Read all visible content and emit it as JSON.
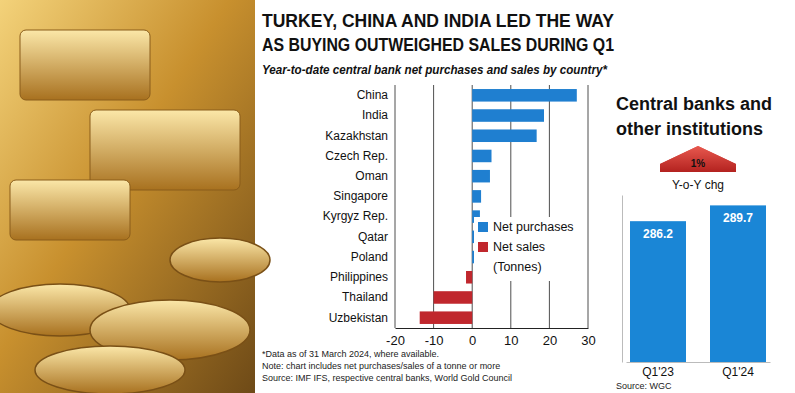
{
  "chart_data": [
    {
      "type": "bar",
      "orientation": "horizontal",
      "title": [
        "TURKEY, CHINA AND INDIA LED THE WAY",
        "AS BUYING OUTWEIGHED SALES DURING Q1"
      ],
      "subtitle": "Year-to-date central bank net purchases and sales by country*",
      "categories": [
        "China",
        "India",
        "Kazakhstan",
        "Czech Rep.",
        "Oman",
        "Singapore",
        "Kyrgyz Rep.",
        "Qatar",
        "Poland",
        "Philippines",
        "Thailand",
        "Uzbekistan"
      ],
      "series": [
        {
          "name": "Net purchases",
          "color": "#1f7fd0",
          "values": [
            27.1,
            18.6,
            16.7,
            5,
            4.6,
            2.3,
            2,
            1.9,
            1.3,
            null,
            null,
            null
          ]
        },
        {
          "name": "Net sales",
          "color": "#c0272d",
          "values": [
            null,
            null,
            null,
            null,
            null,
            null,
            null,
            null,
            null,
            -1.6,
            -10,
            -13.6
          ]
        }
      ],
      "xlim": [
        -20,
        30
      ],
      "xticks": [
        -20,
        -10,
        0,
        10,
        20,
        30
      ],
      "grid": true,
      "legend": "right",
      "annotations": [
        "(Tonnes)"
      ],
      "notes": [
        "*Data as of 31 March 2024, where available.",
        "Note: chart includes net purchases/sales of a tonne or more"
      ],
      "source": "Source: IMF IFS, respective central banks, World Gold Council"
    },
    {
      "type": "bar",
      "title": [
        "Central banks and",
        "other institutions"
      ],
      "annotations": [
        "1%",
        "Y-o-Y chg"
      ],
      "categories": [
        "Q1'23",
        "Q1'24"
      ],
      "values": [
        286.2,
        289.7
      ],
      "color": "#1a86d6",
      "ylim": [
        255,
        292
      ],
      "yticks": [],
      "data_labels": true,
      "tick_labels": "x",
      "source": "Source: WGC"
    }
  ]
}
